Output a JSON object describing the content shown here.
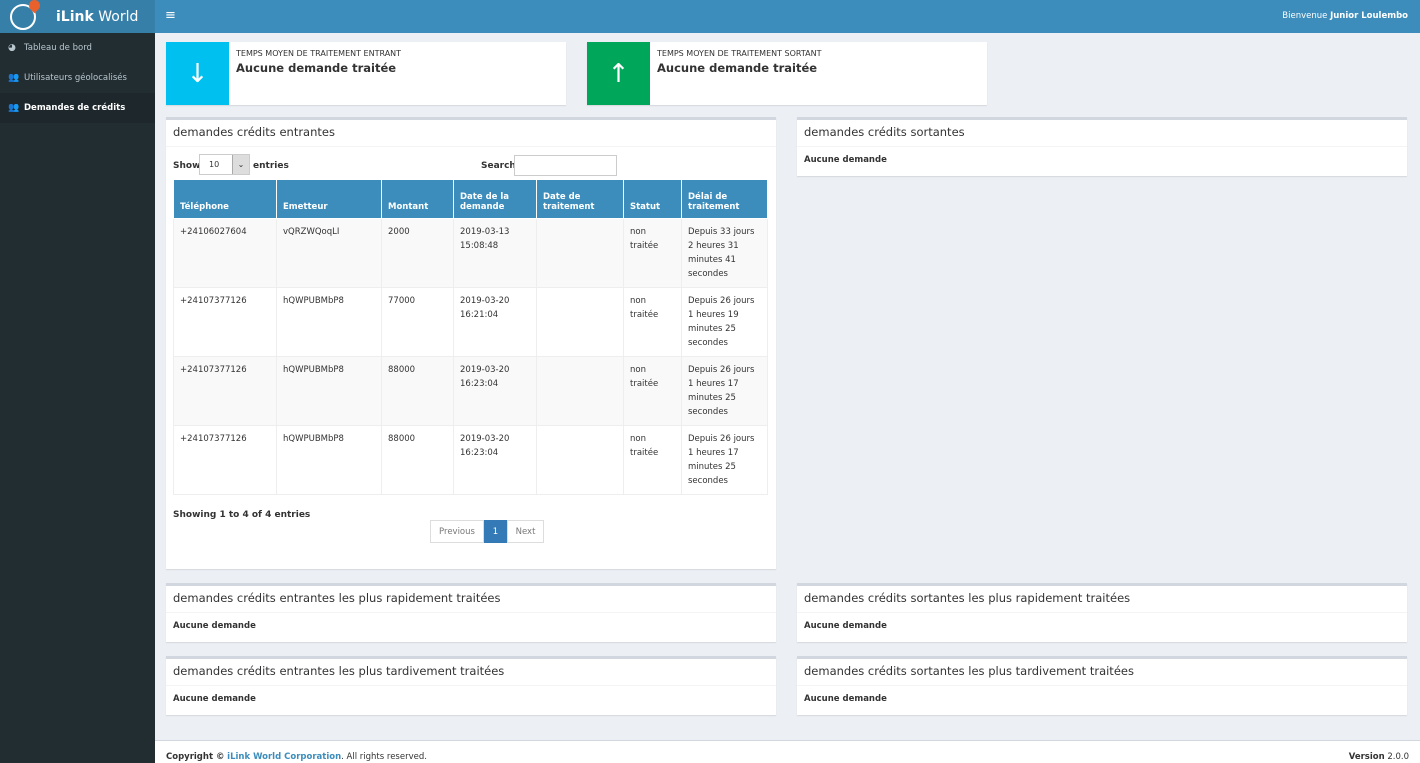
{
  "app": {
    "title_bold": "iLink",
    "title_rest": "World"
  },
  "header": {
    "welcome": "Bienvenue",
    "user": "Junior Loulembo"
  },
  "sidebar": {
    "items": [
      {
        "label": "Tableau de bord",
        "icon": "dashboard-icon"
      },
      {
        "label": "Utilisateurs géolocalisés",
        "icon": "users-icon"
      },
      {
        "label": "Demandes de crédits",
        "icon": "users-icon",
        "active": true
      }
    ]
  },
  "info_boxes": [
    {
      "title": "TEMPS MOYEN DE TRAITEMENT ENTRANT",
      "value": "Aucune demande traitée",
      "icon": "arrow-down-icon",
      "color": "#00c0ef"
    },
    {
      "title": "TEMPS MOYEN DE TRAITEMENT SORTANT",
      "value": "Aucune demande traitée",
      "icon": "arrow-up-icon",
      "color": "#00a65a"
    }
  ],
  "incoming": {
    "title": "demandes crédits entrantes",
    "show": "Show",
    "entries": "entries",
    "page_size": "10",
    "search": "Search:",
    "search_value": "",
    "columns": [
      "Téléphone",
      "Emetteur",
      "Montant",
      "Date de la demande",
      "Date de traitement",
      "Statut",
      "Délai de traitement"
    ],
    "rows": [
      [
        "+24106027604",
        "vQRZWQoqLI",
        "2000",
        "2019-03-13 15:08:48",
        "",
        "non traitée",
        "Depuis 33 jours 2 heures 31 minutes 41 secondes"
      ],
      [
        "+24107377126",
        "hQWPUBMbP8",
        "77000",
        "2019-03-20 16:21:04",
        "",
        "non traitée",
        "Depuis 26 jours 1 heures 19 minutes 25 secondes"
      ],
      [
        "+24107377126",
        "hQWPUBMbP8",
        "88000",
        "2019-03-20 16:23:04",
        "",
        "non traitée",
        "Depuis 26 jours 1 heures 17 minutes 25 secondes"
      ],
      [
        "+24107377126",
        "hQWPUBMbP8",
        "88000",
        "2019-03-20 16:23:04",
        "",
        "non traitée",
        "Depuis 26 jours 1 heures 17 minutes 25 secondes"
      ]
    ],
    "info": "Showing 1 to 4 of 4 entries",
    "prev": "Previous",
    "page": "1",
    "next": "Next"
  },
  "outgoing": {
    "title": "demandes crédits sortantes",
    "empty": "Aucune demande"
  },
  "boxes": [
    {
      "title": "demandes crédits entrantes les plus rapidement traitées",
      "empty": "Aucune demande"
    },
    {
      "title": "demandes crédits sortantes les plus rapidement traitées",
      "empty": "Aucune demande"
    },
    {
      "title": "demandes crédits entrantes les plus tardivement traitées",
      "empty": "Aucune demande"
    },
    {
      "title": "demandes crédits sortantes les plus tardivement traitées",
      "empty": "Aucune demande"
    }
  ],
  "footer": {
    "copyright": "Copyright ©",
    "company": "iLink World Corporation",
    "rights": ". All rights reserved.",
    "version_label": "Version",
    "version": "2.0.0"
  }
}
